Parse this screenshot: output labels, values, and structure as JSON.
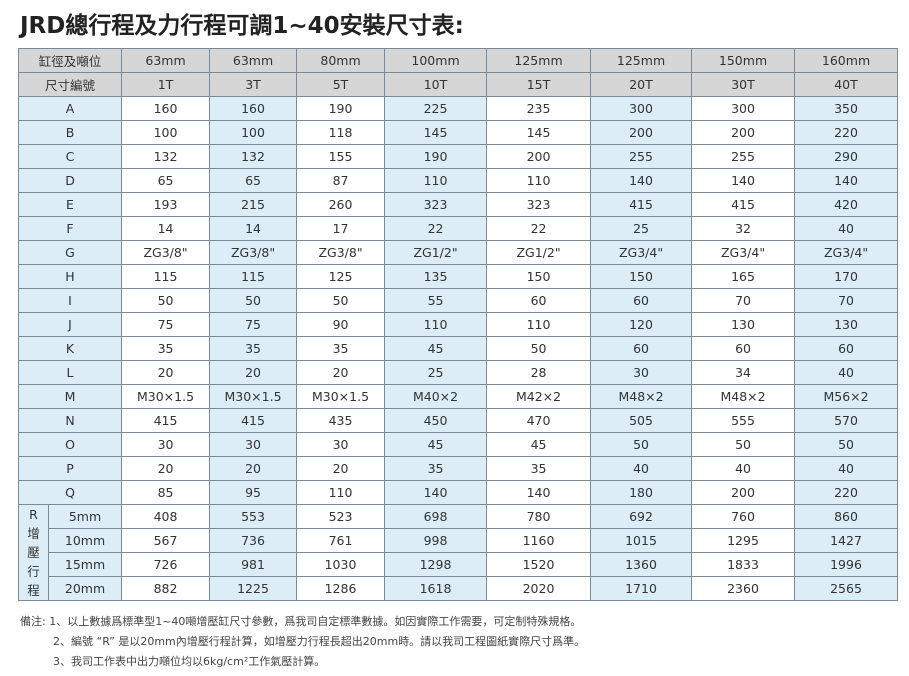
{
  "title": "JRD總行程及力行程可調1~40安裝尺寸表:",
  "header": {
    "bore_label": "缸徑及噸位",
    "code_label": "尺寸編號",
    "bores": [
      "63mm",
      "63mm",
      "80mm",
      "100mm",
      "125mm",
      "125mm",
      "150mm",
      "160mm"
    ],
    "codes": [
      "1T",
      "3T",
      "5T",
      "10T",
      "15T",
      "20T",
      "30T",
      "40T"
    ]
  },
  "rows": [
    {
      "label": "A",
      "values": [
        "160",
        "160",
        "190",
        "225",
        "235",
        "300",
        "300",
        "350"
      ]
    },
    {
      "label": "B",
      "values": [
        "100",
        "100",
        "118",
        "145",
        "145",
        "200",
        "200",
        "220"
      ]
    },
    {
      "label": "C",
      "values": [
        "132",
        "132",
        "155",
        "190",
        "200",
        "255",
        "255",
        "290"
      ]
    },
    {
      "label": "D",
      "values": [
        "65",
        "65",
        "87",
        "110",
        "110",
        "140",
        "140",
        "140"
      ]
    },
    {
      "label": "E",
      "values": [
        "193",
        "215",
        "260",
        "323",
        "323",
        "415",
        "415",
        "420"
      ]
    },
    {
      "label": "F",
      "values": [
        "14",
        "14",
        "17",
        "22",
        "22",
        "25",
        "32",
        "40"
      ]
    },
    {
      "label": "G",
      "values": [
        "ZG3/8\"",
        "ZG3/8\"",
        "ZG3/8\"",
        "ZG1/2\"",
        "ZG1/2\"",
        "ZG3/4\"",
        "ZG3/4\"",
        "ZG3/4\""
      ]
    },
    {
      "label": "H",
      "values": [
        "115",
        "115",
        "125",
        "135",
        "150",
        "150",
        "165",
        "170"
      ]
    },
    {
      "label": "I",
      "values": [
        "50",
        "50",
        "50",
        "55",
        "60",
        "60",
        "70",
        "70"
      ]
    },
    {
      "label": "J",
      "values": [
        "75",
        "75",
        "90",
        "110",
        "110",
        "120",
        "130",
        "130"
      ]
    },
    {
      "label": "K",
      "values": [
        "35",
        "35",
        "35",
        "45",
        "50",
        "60",
        "60",
        "60"
      ]
    },
    {
      "label": "L",
      "values": [
        "20",
        "20",
        "20",
        "25",
        "28",
        "30",
        "34",
        "40"
      ]
    },
    {
      "label": "M",
      "values": [
        "M30×1.5",
        "M30×1.5",
        "M30×1.5",
        "M40×2",
        "M42×2",
        "M48×2",
        "M48×2",
        "M56×2"
      ]
    },
    {
      "label": "N",
      "values": [
        "415",
        "415",
        "435",
        "450",
        "470",
        "505",
        "555",
        "570"
      ]
    },
    {
      "label": "O",
      "values": [
        "30",
        "30",
        "30",
        "45",
        "45",
        "50",
        "50",
        "50"
      ]
    },
    {
      "label": "P",
      "values": [
        "20",
        "20",
        "20",
        "35",
        "35",
        "40",
        "40",
        "40"
      ]
    },
    {
      "label": "Q",
      "values": [
        "85",
        "95",
        "110",
        "140",
        "140",
        "180",
        "200",
        "220"
      ]
    }
  ],
  "r_group": {
    "label": "R增壓行程",
    "rows": [
      {
        "label": "5mm",
        "values": [
          "408",
          "553",
          "523",
          "698",
          "780",
          "692",
          "760",
          "860"
        ]
      },
      {
        "label": "10mm",
        "values": [
          "567",
          "736",
          "761",
          "998",
          "1160",
          "1015",
          "1295",
          "1427"
        ]
      },
      {
        "label": "15mm",
        "values": [
          "726",
          "981",
          "1030",
          "1298",
          "1520",
          "1360",
          "1833",
          "1996"
        ]
      },
      {
        "label": "20mm",
        "values": [
          "882",
          "1225",
          "1286",
          "1618",
          "2020",
          "1710",
          "2360",
          "2565"
        ]
      }
    ]
  },
  "notes": [
    "備注: 1、以上數據爲標準型1~40噸增壓缸尺寸參數，爲我司自定標準數據。如因實際工作需要，可定制特殊規格。",
    "2、編號 “R” 是以20mm內增壓行程計算，如增壓力行程長超出20mm時。請以我司工程圖紙實際尺寸爲準。",
    "3、我司工作表中出力噸位均以6kg/cm²工作氣壓計算。"
  ]
}
